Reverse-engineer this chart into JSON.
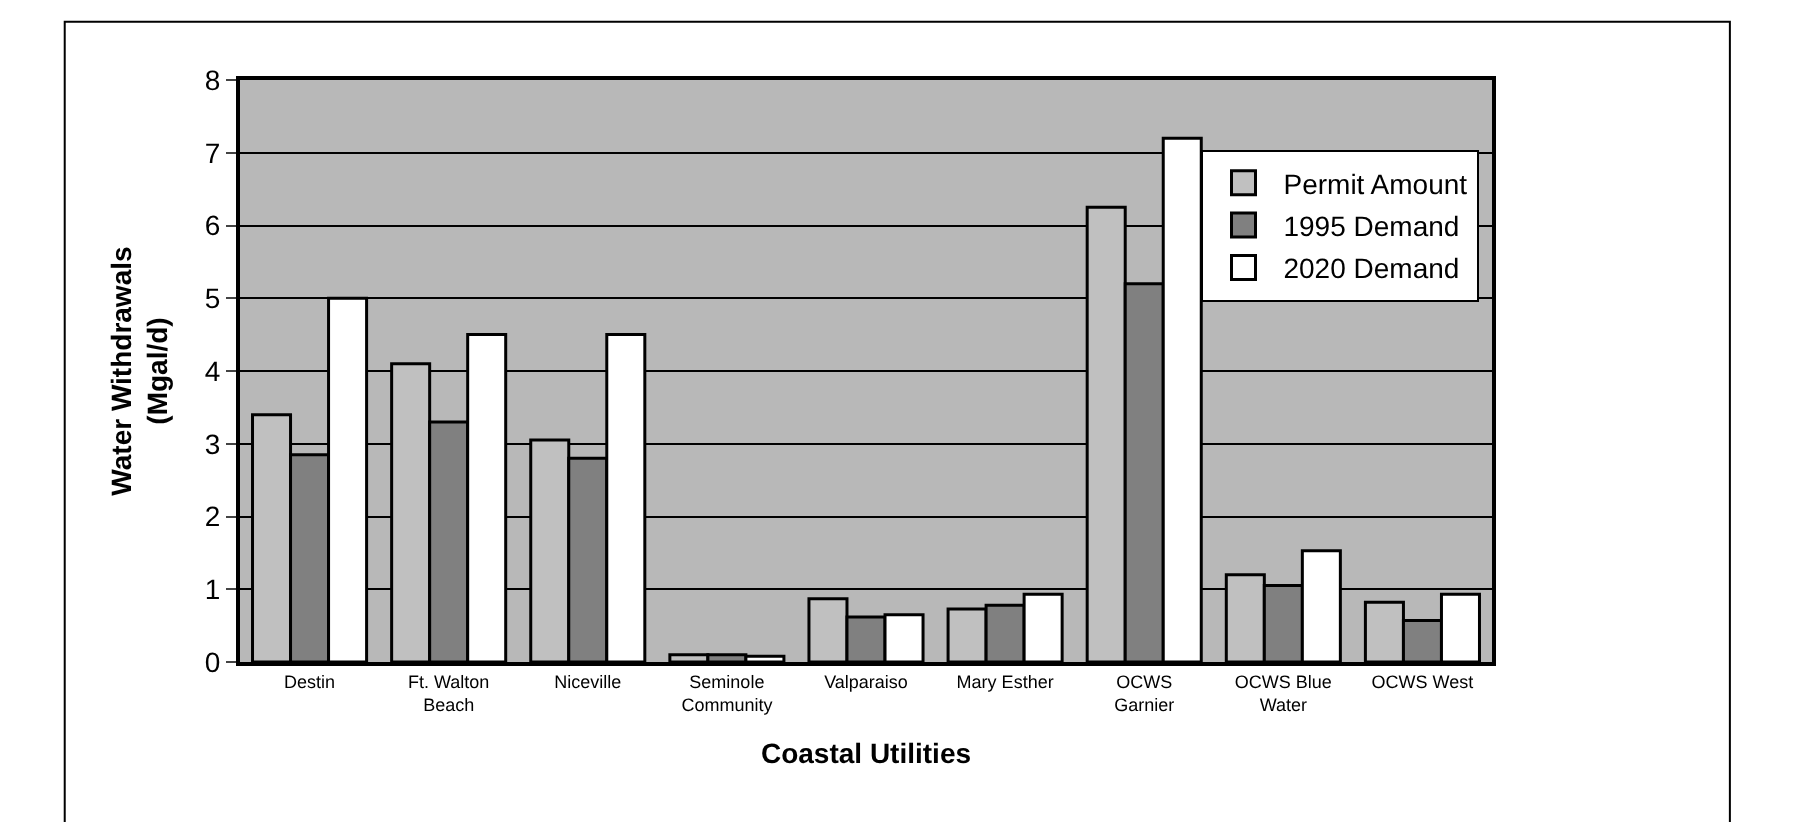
{
  "chart_data": {
    "type": "bar",
    "xlabel": "Coastal Utilities",
    "ylabel": "Water Withdrawals (Mgal/d)",
    "categories": [
      "Destin",
      "Ft. Walton Beach",
      "Niceville",
      "Seminole Community",
      "Valparaiso",
      "Mary Esther",
      "OCWS Garnier",
      "OCWS Blue Water",
      "OCWS West"
    ],
    "series": [
      {
        "name": "Permit Amount",
        "color": "#c0c0c0",
        "values": [
          3.4,
          4.1,
          3.05,
          0.1,
          0.87,
          0.73,
          6.25,
          1.2,
          0.82
        ]
      },
      {
        "name": "1995 Demand",
        "color": "#808080",
        "values": [
          2.85,
          3.3,
          2.8,
          0.1,
          0.62,
          0.78,
          5.2,
          1.05,
          0.57
        ]
      },
      {
        "name": "2020 Demand",
        "color": "#ffffff",
        "values": [
          5.0,
          4.5,
          4.5,
          0.08,
          0.65,
          0.93,
          7.2,
          1.53,
          0.93
        ]
      }
    ],
    "ylim": [
      0,
      8
    ],
    "yticks": [
      0,
      1,
      2,
      3,
      4,
      5,
      6,
      7,
      8
    ],
    "grid": "y",
    "legend": "right"
  }
}
